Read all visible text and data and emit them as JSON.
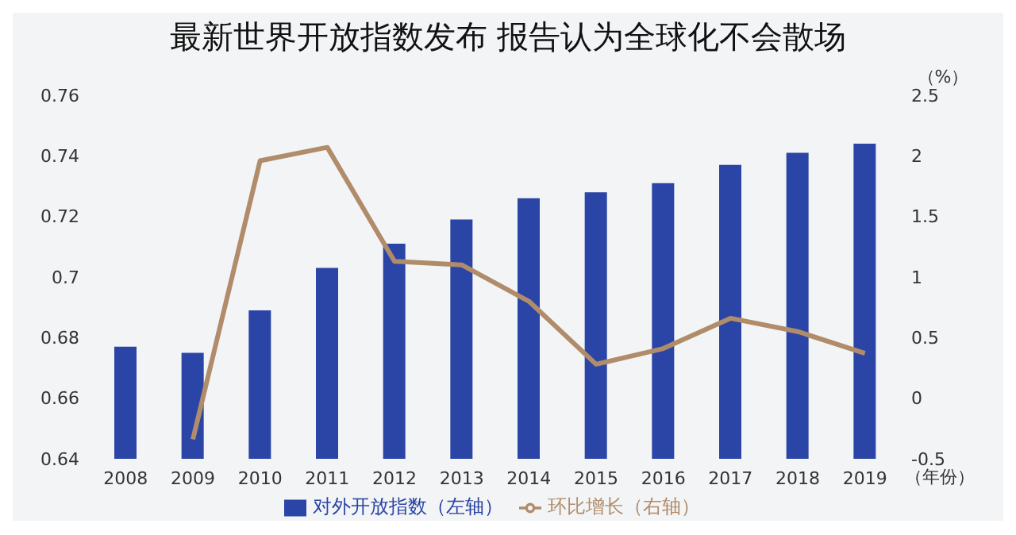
{
  "chart_data": {
    "type": "bar",
    "title": "最新世界开放指数发布 报告认为全球化不会散场",
    "xlabel": "（年份）",
    "y2label": "（%）",
    "categories": [
      "2008",
      "2009",
      "2010",
      "2011",
      "2012",
      "2013",
      "2014",
      "2015",
      "2016",
      "2017",
      "2018",
      "2019"
    ],
    "series": [
      {
        "name": "对外开放指数（左轴）",
        "color": "#2a45a5",
        "values": [
          0.677,
          0.675,
          0.689,
          0.703,
          0.711,
          0.719,
          0.726,
          0.728,
          0.731,
          0.737,
          0.741,
          0.744
        ]
      },
      {
        "name": "环比增长（右轴）",
        "type": "line",
        "axis": "y2",
        "color": "#b08c6a",
        "values": [
          null,
          -0.34,
          1.96,
          2.07,
          1.13,
          1.1,
          0.8,
          0.28,
          0.41,
          0.66,
          0.55,
          0.37
        ]
      }
    ],
    "ylim": [
      0.64,
      0.76
    ],
    "yticks": [
      0.64,
      0.66,
      0.68,
      0.7,
      0.72,
      0.74,
      0.76
    ],
    "y2lim": [
      -0.5,
      2.5
    ],
    "y2ticks": [
      -0.5,
      0,
      0.5,
      1,
      1.5,
      2,
      2.5
    ],
    "grid": false,
    "legend": "bottom",
    "marker": "none",
    "line_style": "solid"
  }
}
